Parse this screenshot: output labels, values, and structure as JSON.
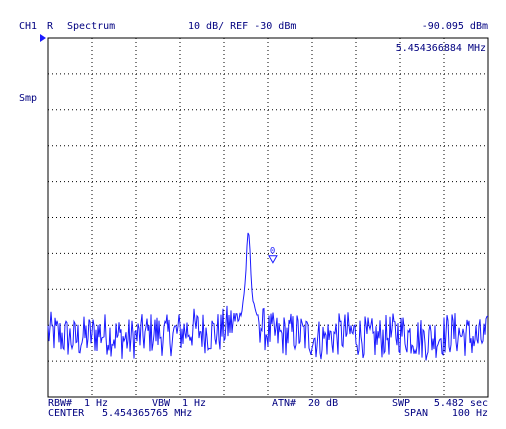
{
  "header": {
    "channel": "CH1",
    "mode": "R",
    "analyzer": "Spectrum",
    "scale": "10 dB/ REF -30 dBm",
    "marker_level": "-90.095 dBm",
    "marker_freq": "5.454366884 MHz"
  },
  "side": {
    "detector": "Smp"
  },
  "footer": {
    "rbw_label": "RBW#",
    "rbw_value": "1 Hz",
    "vbw_label": "VBW",
    "vbw_value": "1 Hz",
    "atn_label": "ATN#",
    "atn_value": "20 dB",
    "swp_label": "SWP",
    "swp_value": "5.482 sec",
    "center_label": "CENTER",
    "center_value": "5.454365765 MHz",
    "span_label": "SPAN",
    "span_value": "100 Hz"
  },
  "colors": {
    "trace": "#1a1aff",
    "text": "#000080",
    "grid": "#000000",
    "frame": "#000000",
    "marker_indicator": "#1a1aff"
  },
  "marker": {
    "number": "0"
  },
  "chart_data": {
    "type": "line",
    "title": "Spectrum",
    "xlabel": "",
    "ylabel": "",
    "center_hz": 5454365.765,
    "span_hz": 100,
    "x_divisions": 10,
    "ref_dbm": -30,
    "db_per_div": 10,
    "y_divisions": 10,
    "ylim": [
      -130,
      -30
    ],
    "grid": true,
    "marker": {
      "freq_mhz": 5.454366884,
      "level_dbm": -90.095
    },
    "series": [
      {
        "points": [
          [
            -50,
            -112
          ],
          [
            -47,
            -113
          ],
          [
            -44,
            -114
          ],
          [
            -41,
            -113
          ],
          [
            -38,
            -112
          ],
          [
            -35,
            -113
          ],
          [
            -32,
            -114
          ],
          [
            -29,
            -113
          ],
          [
            -26,
            -112
          ],
          [
            -23,
            -113
          ],
          [
            -20,
            -112
          ],
          [
            -17,
            -111
          ],
          [
            -14,
            -112
          ],
          [
            -11,
            -112
          ],
          [
            -9,
            -110
          ],
          [
            -7,
            -109
          ],
          [
            -6,
            -106
          ],
          [
            -5.5,
            -102
          ],
          [
            -5,
            -95
          ],
          [
            -4.7,
            -86
          ],
          [
            -4.5,
            -84
          ],
          [
            -4.2,
            -85
          ],
          [
            -4,
            -92
          ],
          [
            -3.7,
            -100
          ],
          [
            -3.3,
            -104
          ],
          [
            -3,
            -106
          ],
          [
            -2.5,
            -107
          ],
          [
            -2,
            -109
          ],
          [
            -1,
            -111
          ],
          [
            0,
            -112
          ],
          [
            3,
            -113
          ],
          [
            6,
            -112
          ],
          [
            9,
            -113
          ],
          [
            12,
            -114
          ],
          [
            15,
            -113
          ],
          [
            18,
            -112
          ],
          [
            21,
            -113
          ],
          [
            24,
            -114
          ],
          [
            27,
            -113
          ],
          [
            30,
            -112
          ],
          [
            33,
            -113
          ],
          [
            36,
            -114
          ],
          [
            39,
            -113
          ],
          [
            42,
            -112
          ],
          [
            45,
            -113
          ],
          [
            48,
            -114
          ],
          [
            50,
            -113
          ]
        ]
      }
    ],
    "noise_floor_dbm": -113,
    "noise_band_db": 6
  }
}
